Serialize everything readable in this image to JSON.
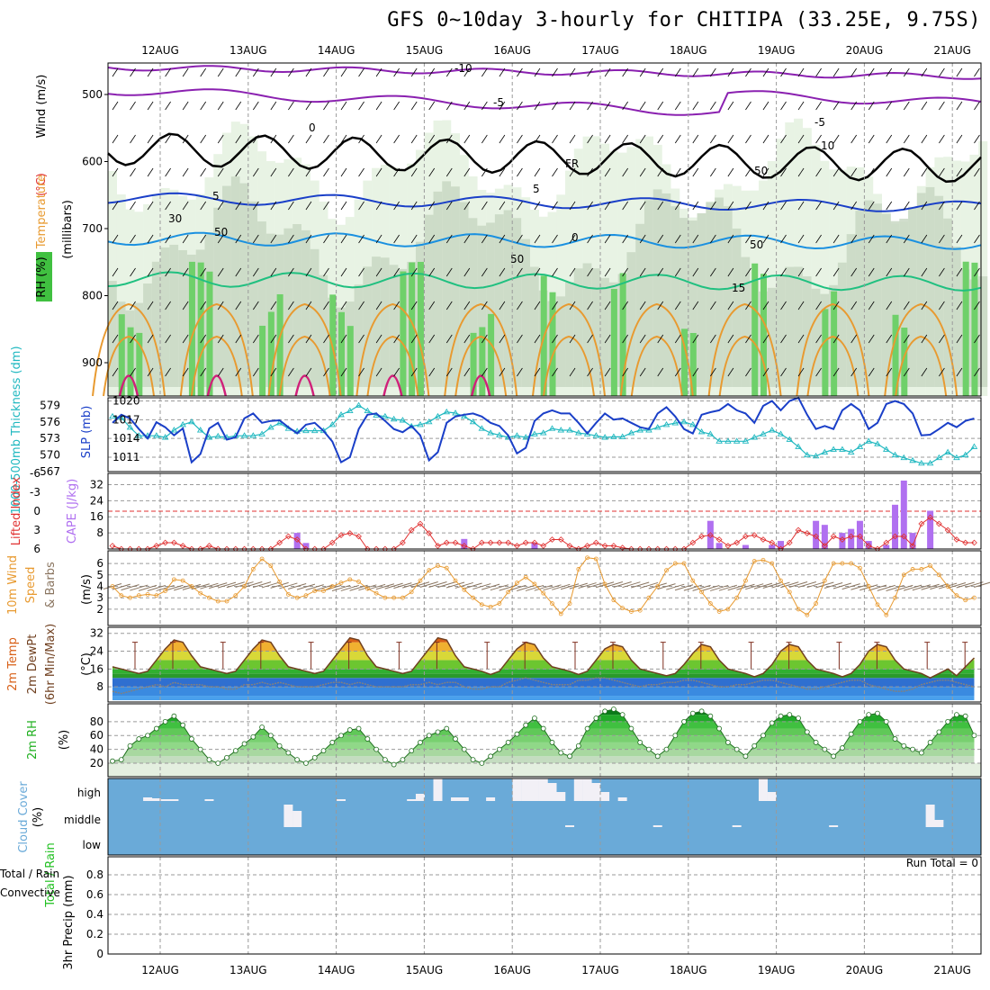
{
  "title": "GFS 0~10day 3-hourly for CHITIPA (33.25E, 9.75S)",
  "dates": [
    "12AUG",
    "13AUG",
    "14AUG",
    "15AUG",
    "16AUG",
    "17AUG",
    "18AUG",
    "19AUG",
    "20AUG",
    "21AUG"
  ],
  "colors": {
    "grid": "#9a9a9a",
    "slp": "#1a3fc8",
    "thick": "#20b8c0",
    "li": "#e03030",
    "cape": "#b070f0",
    "wind": "#e89a30",
    "barb": "#8a7560",
    "dew": "#808080",
    "rh": "#20b020",
    "cloud": "#6aaad8",
    "cloud_fill": "#f2f0f6",
    "rain": "#20c020",
    "conv": "#e03030"
  },
  "chart_data": [
    {
      "type": "heatmap",
      "name": "upper-air",
      "ylabel_parts": [
        "RH (%)",
        "Temperature",
        " (°C)",
        "Wind (m/s)"
      ],
      "yaxis_label": "(millibars)",
      "yticks": [
        500,
        600,
        700,
        800,
        900
      ],
      "contour_labels": [
        "-10",
        "-5",
        "-5",
        "0",
        "FR",
        "5",
        "5",
        "0",
        "15",
        "10",
        "50",
        "50",
        "30",
        "50",
        "50"
      ]
    },
    {
      "type": "line",
      "name": "slp-thickness",
      "ylabel_left": "1000-500mb Thickness (dm)",
      "ylabel_right": "SLP (mb)",
      "yticks_thickness": [
        567,
        570,
        573,
        576,
        579
      ],
      "yticks_slp": [
        1011,
        1014,
        1017,
        1020
      ],
      "series": [
        {
          "name": "SLP (mb)",
          "values": [
            1016.5,
            1017.8,
            1017.2,
            1015.5,
            1014.0,
            1016.6,
            1015.8,
            1014.5,
            1015.6,
            1010.2,
            1011.5,
            1015.6,
            1016.5,
            1013.8,
            1014.2,
            1017.2,
            1018.0,
            1016.5,
            1016.8,
            1016.9,
            1015.8,
            1014.8,
            1016.2,
            1016.5,
            1015.2,
            1013.5,
            1010.2,
            1011.0,
            1015.5,
            1017.8,
            1018.0,
            1016.8,
            1015.5,
            1015.0,
            1016.0,
            1014.5,
            1010.5,
            1011.8,
            1016.5,
            1017.5,
            1017.8,
            1018.0,
            1017.5,
            1016.5,
            1016.0,
            1014.5,
            1011.6,
            1012.5,
            1016.8,
            1018.0,
            1018.5,
            1018.0,
            1018.0,
            1016.5,
            1014.8,
            1016.5,
            1018.0,
            1017.0,
            1017.2,
            1016.5,
            1015.8,
            1015.5,
            1018.0,
            1019.0,
            1017.5,
            1015.5,
            1014.8,
            1017.8,
            1018.2,
            1018.5,
            1019.5,
            1018.5,
            1018.0,
            1016.5,
            1019.2,
            1020.0,
            1018.5,
            1020.0,
            1020.5,
            1017.8,
            1015.5,
            1016.0,
            1015.5,
            1018.5,
            1019.5,
            1018.5,
            1015.5,
            1016.5,
            1019.5,
            1020.0,
            1019.5,
            1018.0,
            1014.5,
            1014.6,
            1015.5,
            1016.5,
            1015.8,
            1016.8,
            1017.2
          ]
        },
        {
          "name": "1000-500mb Thickness (dm)",
          "values": [
            577.0,
            576.8,
            575.0,
            573.5,
            573.5,
            573.5,
            573.2,
            574.5,
            575.5,
            576.0,
            574.5,
            573.2,
            573.4,
            573.2,
            573.5,
            573.5,
            573.5,
            573.8,
            575.0,
            575.8,
            574.8,
            574.3,
            574.4,
            574.4,
            574.4,
            575.5,
            577.3,
            578.0,
            579.0,
            578.0,
            577.2,
            577.0,
            576.5,
            576.3,
            575.2,
            575.5,
            576.0,
            577.0,
            577.8,
            577.6,
            577.0,
            576.0,
            574.8,
            574.0,
            573.6,
            573.2,
            573.5,
            573.2,
            573.8,
            574.0,
            574.8,
            574.5,
            574.5,
            574.0,
            573.8,
            573.5,
            573.2,
            573.3,
            573.3,
            574.0,
            574.5,
            574.5,
            575.0,
            575.5,
            575.8,
            576.0,
            575.5,
            574.2,
            573.8,
            572.5,
            572.5,
            572.5,
            572.5,
            573.2,
            573.8,
            574.5,
            573.8,
            572.8,
            571.5,
            570.0,
            569.8,
            570.5,
            571.0,
            571.0,
            570.5,
            571.5,
            572.5,
            572.0,
            571.0,
            570.0,
            569.5,
            569.0,
            568.5,
            568.5,
            569.5,
            570.5,
            569.5,
            570.0,
            571.5
          ]
        }
      ]
    },
    {
      "type": "bar",
      "name": "lifted-index-cape",
      "ylabel_left": "Lifted Index",
      "ylabel_right": "CAPE (J/kg)",
      "yticks_cape": [
        8,
        16,
        24,
        32
      ],
      "yticks_li": [
        6,
        3,
        0,
        -3,
        -6
      ],
      "cape_bars": [
        {
          "x": 21,
          "v": 8
        },
        {
          "x": 22,
          "v": 3
        },
        {
          "x": 40,
          "v": 5
        },
        {
          "x": 48,
          "v": 3
        },
        {
          "x": 68,
          "v": 14
        },
        {
          "x": 69,
          "v": 3
        },
        {
          "x": 72,
          "v": 2
        },
        {
          "x": 75,
          "v": 2
        },
        {
          "x": 76,
          "v": 4
        },
        {
          "x": 80,
          "v": 14
        },
        {
          "x": 81,
          "v": 12
        },
        {
          "x": 83,
          "v": 8
        },
        {
          "x": 84,
          "v": 10
        },
        {
          "x": 85,
          "v": 14
        },
        {
          "x": 86,
          "v": 4
        },
        {
          "x": 88,
          "v": 2
        },
        {
          "x": 89,
          "v": 22
        },
        {
          "x": 90,
          "v": 34
        },
        {
          "x": 91,
          "v": 8
        },
        {
          "x": 93,
          "v": 19
        }
      ],
      "lifted_index": [
        5.5,
        6,
        6,
        6,
        6,
        5.5,
        5,
        5,
        5.5,
        6,
        6,
        5.5,
        6,
        6,
        6,
        6,
        6,
        6,
        6,
        5,
        4,
        4.5,
        6,
        6,
        6,
        5,
        3.8,
        3.5,
        4,
        6,
        6,
        6,
        6,
        5,
        3,
        2,
        3.5,
        5.5,
        5,
        5,
        5.5,
        6,
        5,
        5,
        5,
        5,
        5.5,
        5,
        5,
        5.5,
        4.5,
        4.5,
        5.5,
        6,
        5.5,
        5,
        5.5,
        5.5,
        5.8,
        6,
        6,
        6,
        6,
        6,
        6,
        6,
        5,
        4,
        3.8,
        4.5,
        5.5,
        5,
        4,
        3.8,
        4.5,
        5,
        6,
        5,
        3,
        3.5,
        4,
        5.5,
        4,
        4.5,
        4,
        4,
        5.5,
        6,
        5,
        4,
        4,
        5.5,
        2,
        1,
        2,
        3,
        4.5,
        5,
        5
      ]
    },
    {
      "type": "line",
      "name": "10m-wind",
      "ylabel": "10m Wind Speed & Barbs (m/s)",
      "yticks": [
        2,
        3,
        4,
        5,
        6
      ],
      "values": [
        4.0,
        3.2,
        3.0,
        3.2,
        3.3,
        3.2,
        3.6,
        4.6,
        4.5,
        4.0,
        3.4,
        3.0,
        2.7,
        2.7,
        3.2,
        4.0,
        5.5,
        6.4,
        5.8,
        4.4,
        3.3,
        3.0,
        3.2,
        3.6,
        3.6,
        4.0,
        4.3,
        4.6,
        4.4,
        3.8,
        3.4,
        3.0,
        3.0,
        3.0,
        3.5,
        4.5,
        5.4,
        5.8,
        5.6,
        4.5,
        3.7,
        3.0,
        2.4,
        2.2,
        2.5,
        3.5,
        4.3,
        4.8,
        4.2,
        3.4,
        2.5,
        1.6,
        2.5,
        5.5,
        6.5,
        6.4,
        4.2,
        2.8,
        2.1,
        1.8,
        1.9,
        3.0,
        4.0,
        5.4,
        6.0,
        6.0,
        4.5,
        3.5,
        2.5,
        1.8,
        2.0,
        3.0,
        4.5,
        6.2,
        6.3,
        6.0,
        4.5,
        3.5,
        2.0,
        1.5,
        2.5,
        4.5,
        6.0,
        6.0,
        6.0,
        5.6,
        4.0,
        2.4,
        1.5,
        3.0,
        5.0,
        5.5,
        5.5,
        5.8,
        5.0,
        4.0,
        3.2,
        2.8,
        3.0
      ]
    },
    {
      "type": "area",
      "name": "2m-temp",
      "ylabel": "2m Temp / 2m DewPt (6hr Min/Max) (°C)",
      "yticks": [
        8,
        16,
        24,
        32
      ],
      "temp": [
        17,
        16,
        15,
        14,
        15,
        20,
        25,
        29,
        28,
        22,
        17,
        16,
        15,
        14,
        15,
        20,
        25,
        29,
        28,
        22,
        17,
        16,
        15,
        14,
        15,
        20,
        25,
        30,
        29,
        22,
        17,
        16,
        15,
        14,
        15,
        20,
        25,
        30,
        29,
        22,
        17,
        16,
        15,
        13.5,
        15,
        20,
        25,
        28,
        27,
        21,
        17,
        16,
        15,
        13.5,
        15,
        20,
        25,
        27,
        26,
        20,
        16,
        15,
        14,
        13,
        14,
        18,
        23,
        27,
        26,
        20,
        16,
        15,
        14,
        12.5,
        14,
        18,
        24,
        27,
        26,
        20,
        16,
        15,
        14,
        12.5,
        14,
        18,
        24,
        27,
        26,
        20,
        16,
        15,
        14,
        12,
        14,
        16,
        13,
        17,
        21
      ],
      "dewpoint": [
        6,
        5,
        6,
        7,
        8,
        9,
        8,
        10,
        9,
        9,
        9,
        8,
        8,
        7,
        7,
        9,
        9,
        10,
        9,
        10,
        9,
        8,
        8,
        8,
        9,
        10,
        10,
        9,
        10,
        9,
        8,
        8,
        8,
        8,
        9,
        9,
        10,
        9,
        10,
        10,
        8,
        7,
        7,
        8,
        8,
        10,
        11,
        12,
        11,
        10,
        9,
        9,
        9,
        11,
        11,
        12,
        12,
        11,
        10,
        9,
        8,
        9,
        9,
        10,
        10,
        11,
        11,
        10,
        9,
        8,
        8,
        9,
        9,
        10,
        11,
        11,
        10,
        9,
        8,
        7,
        7,
        8,
        9,
        10,
        11,
        11,
        9,
        8,
        7,
        6,
        6,
        7,
        9,
        10,
        11,
        11,
        10,
        9,
        8
      ]
    },
    {
      "type": "area",
      "name": "2m-rh",
      "ylabel": "2m RH (%)",
      "yticks": [
        20,
        40,
        60,
        80
      ],
      "values": [
        23,
        25,
        45,
        55,
        60,
        70,
        80,
        88,
        75,
        55,
        40,
        25,
        20,
        28,
        38,
        48,
        58,
        72,
        60,
        45,
        35,
        25,
        20,
        28,
        38,
        50,
        60,
        68,
        70,
        55,
        40,
        25,
        18,
        25,
        38,
        50,
        60,
        65,
        70,
        55,
        40,
        25,
        20,
        30,
        40,
        50,
        62,
        75,
        85,
        70,
        50,
        35,
        30,
        45,
        70,
        85,
        95,
        98,
        90,
        70,
        50,
        40,
        30,
        40,
        60,
        80,
        92,
        95,
        88,
        70,
        50,
        40,
        30,
        45,
        60,
        78,
        88,
        90,
        85,
        65,
        50,
        40,
        30,
        42,
        62,
        80,
        90,
        92,
        80,
        55,
        45,
        40,
        35,
        50,
        65,
        80,
        90,
        88,
        60
      ]
    },
    {
      "type": "bar",
      "name": "cloud-cover",
      "ylabel": "Cloud Cover (%)",
      "levels": [
        "high",
        "middle",
        "low"
      ]
    },
    {
      "type": "bar",
      "name": "precip",
      "ylabel_parts": [
        "Total / Rain",
        "Convective",
        "3hr Precip (mm)"
      ],
      "yticks": [
        0,
        0.2,
        0.4,
        0.6,
        0.8
      ],
      "run_total_label": "Run Total = 0",
      "values": []
    }
  ]
}
